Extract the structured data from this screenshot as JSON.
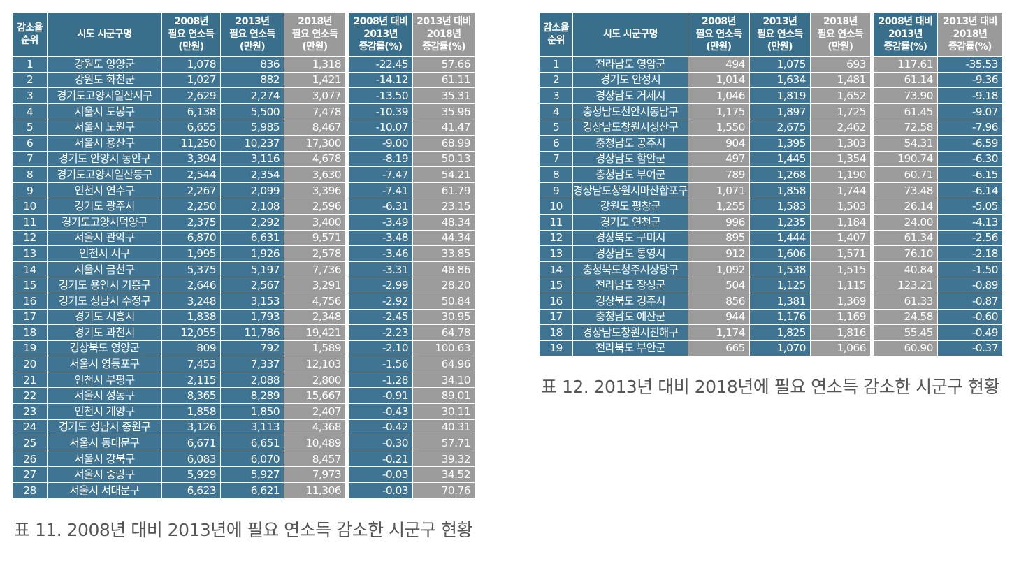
{
  "headers": [
    "감소율\n순위",
    "시도 시군구명",
    "2008년\n필요 연소득\n(만원)",
    "2013년\n필요 연소득\n(만원)",
    "2018년\n필요 연소득\n(만원)",
    "2008년 대비\n2013년\n증감률(%)",
    "2013년 대비\n2018년\n증감률(%)"
  ],
  "table_left": {
    "caption": "표 11. 2008년 대비 2013년에 필요 연소득 감소한 시군구 현황",
    "rows": [
      [
        "1",
        "강원도 양양군",
        "1,078",
        "836",
        "1,318",
        "-22.45",
        "57.66"
      ],
      [
        "2",
        "강원도 화천군",
        "1,027",
        "882",
        "1,421",
        "-14.12",
        "61.11"
      ],
      [
        "3",
        "경기도고양시일산서구",
        "2,629",
        "2,274",
        "3,077",
        "-13.50",
        "35.31"
      ],
      [
        "4",
        "서울시 도봉구",
        "6,138",
        "5,500",
        "7,478",
        "-10.39",
        "35.96"
      ],
      [
        "5",
        "서울시 노원구",
        "6,655",
        "5,985",
        "8,467",
        "-10.07",
        "41.47"
      ],
      [
        "6",
        "서울시 용산구",
        "11,250",
        "10,237",
        "17,300",
        "-9.00",
        "68.99"
      ],
      [
        "7",
        "경기도 안양시 동안구",
        "3,394",
        "3,116",
        "4,678",
        "-8.19",
        "50.13"
      ],
      [
        "8",
        "경기도고양시일산동구",
        "2,544",
        "2,354",
        "3,630",
        "-7.47",
        "54.21"
      ],
      [
        "9",
        "인천시 연수구",
        "2,267",
        "2,099",
        "3,396",
        "-7.41",
        "61.79"
      ],
      [
        "10",
        "경기도 광주시",
        "2,250",
        "2,108",
        "2,596",
        "-6.31",
        "23.15"
      ],
      [
        "11",
        "경기도고양시덕양구",
        "2,375",
        "2,292",
        "3,400",
        "-3.49",
        "48.34"
      ],
      [
        "12",
        "서울시 관악구",
        "6,870",
        "6,631",
        "9,571",
        "-3.48",
        "44.34"
      ],
      [
        "13",
        "인천시 서구",
        "1,995",
        "1,926",
        "2,578",
        "-3.46",
        "33.85"
      ],
      [
        "14",
        "서울시 금천구",
        "5,375",
        "5,197",
        "7,736",
        "-3.31",
        "48.86"
      ],
      [
        "15",
        "경기도 용인시 기흥구",
        "2,646",
        "2,567",
        "3,291",
        "-2.99",
        "28.20"
      ],
      [
        "16",
        "경기도 성남시 수정구",
        "3,248",
        "3,153",
        "4,756",
        "-2.92",
        "50.84"
      ],
      [
        "17",
        "경기도 시흥시",
        "1,838",
        "1,793",
        "2,348",
        "-2.45",
        "30.95"
      ],
      [
        "18",
        "경기도 과천시",
        "12,055",
        "11,786",
        "19,421",
        "-2.23",
        "64.78"
      ],
      [
        "19",
        "경상북도 영양군",
        "809",
        "792",
        "1,589",
        "-2.10",
        "100.63"
      ],
      [
        "20",
        "서울시 영등포구",
        "7,453",
        "7,337",
        "12,103",
        "-1.56",
        "64.96"
      ],
      [
        "21",
        "인천시 부평구",
        "2,115",
        "2,088",
        "2,800",
        "-1.28",
        "34.10"
      ],
      [
        "22",
        "서울시 성동구",
        "8,365",
        "8,289",
        "15,667",
        "-0.91",
        "89.01"
      ],
      [
        "23",
        "인천시 계양구",
        "1,858",
        "1,850",
        "2,407",
        "-0.43",
        "30.11"
      ],
      [
        "24",
        "경기도 성남시 중원구",
        "3,126",
        "3,113",
        "4,368",
        "-0.42",
        "40.31"
      ],
      [
        "25",
        "서울시 동대문구",
        "6,671",
        "6,651",
        "10,489",
        "-0.30",
        "57.71"
      ],
      [
        "26",
        "서울시 강북구",
        "6,083",
        "6,070",
        "8,457",
        "-0.21",
        "39.32"
      ],
      [
        "27",
        "서울시 중랑구",
        "5,929",
        "5,927",
        "7,973",
        "-0.03",
        "34.52"
      ],
      [
        "28",
        "서울시 서대문구",
        "6,623",
        "6,621",
        "11,306",
        "-0.03",
        "70.76"
      ]
    ]
  },
  "table_right": {
    "caption": "표 12. 2013년 대비 2018년에 필요 연소득 감소한 시군구 현황",
    "rows": [
      [
        "1",
        "전라남도 영암군",
        "494",
        "1,075",
        "693",
        "117.61",
        "-35.53"
      ],
      [
        "2",
        "경기도 안성시",
        "1,014",
        "1,634",
        "1,481",
        "61.14",
        "-9.36"
      ],
      [
        "3",
        "경상남도 거제시",
        "1,046",
        "1,819",
        "1,652",
        "73.90",
        "-9.18"
      ],
      [
        "4",
        "충청남도천안시동남구",
        "1,175",
        "1,897",
        "1,725",
        "61.45",
        "-9.07"
      ],
      [
        "5",
        "경상남도창원시성산구",
        "1,550",
        "2,675",
        "2,462",
        "72.58",
        "-7.96"
      ],
      [
        "6",
        "충청남도 공주시",
        "904",
        "1,395",
        "1,303",
        "54.31",
        "-6.59"
      ],
      [
        "7",
        "경상남도 함안군",
        "497",
        "1,445",
        "1,354",
        "190.74",
        "-6.30"
      ],
      [
        "8",
        "충청남도 부여군",
        "789",
        "1,268",
        "1,190",
        "60.71",
        "-6.15"
      ],
      [
        "9",
        "경상남도창원시마산합포구",
        "1,071",
        "1,858",
        "1,744",
        "73.48",
        "-6.14"
      ],
      [
        "10",
        "강원도 평창군",
        "1,255",
        "1,583",
        "1,503",
        "26.14",
        "-5.05"
      ],
      [
        "11",
        "경기도 연천군",
        "996",
        "1,235",
        "1,184",
        "24.00",
        "-4.13"
      ],
      [
        "12",
        "경상북도 구미시",
        "895",
        "1,444",
        "1,407",
        "61.34",
        "-2.56"
      ],
      [
        "13",
        "경상남도 통영시",
        "912",
        "1,606",
        "1,571",
        "76.10",
        "-2.18"
      ],
      [
        "14",
        "충청북도청주시상당구",
        "1,092",
        "1,538",
        "1,515",
        "40.84",
        "-1.50"
      ],
      [
        "15",
        "전라남도 장성군",
        "504",
        "1,125",
        "1,115",
        "123.21",
        "-0.89"
      ],
      [
        "16",
        "경상북도 경주시",
        "856",
        "1,381",
        "1,369",
        "61.33",
        "-0.87"
      ],
      [
        "17",
        "충청남도 예산군",
        "944",
        "1,176",
        "1,169",
        "24.58",
        "-0.60"
      ],
      [
        "18",
        "경상남도창원시진해구",
        "1,174",
        "1,825",
        "1,816",
        "55.45",
        "-0.49"
      ],
      [
        "19",
        "전라북도 부안군",
        "665",
        "1,070",
        "1,066",
        "60.90",
        "-0.37"
      ]
    ]
  }
}
